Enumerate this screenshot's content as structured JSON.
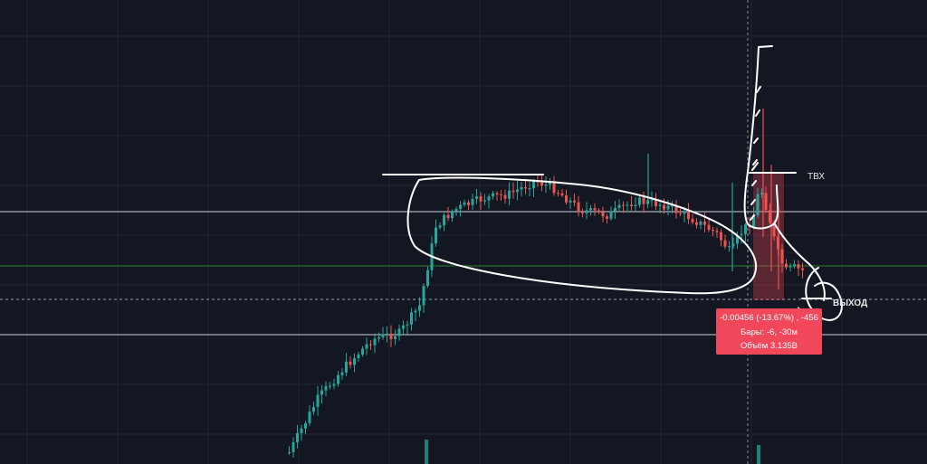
{
  "chart_data": {
    "type": "candlestick",
    "title": "",
    "xlabel": "",
    "ylabel": "",
    "grid": true,
    "colors": {
      "background": "#131722",
      "grid": "#1f2433",
      "up": "#26a69a",
      "down": "#ef5350",
      "level_line": "#cfd3dc",
      "green_line": "#2e7d32",
      "measure_fill": "#f0475a",
      "drawing": "#ffffff"
    },
    "measure": {
      "line1": "-0.00456 (-13.67%) , -456",
      "line2": "Бары: -6, -30м",
      "line3": "Объём 3.135B"
    },
    "annotations": {
      "entry": "ТВХ",
      "exit": "ВЫХОД"
    }
  }
}
